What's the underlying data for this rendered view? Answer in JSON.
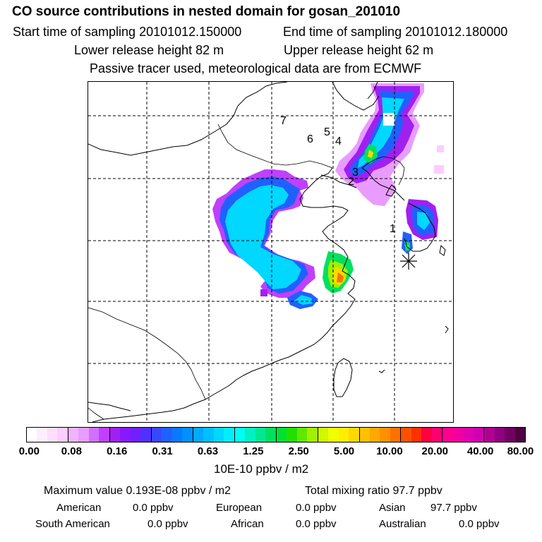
{
  "title": "CO  source contributions in nested domain for gosan_201010",
  "header": {
    "start": "Start time of sampling 20101012.150000",
    "end": "End time of sampling 20101012.180000",
    "lower": "Lower release height   82 m",
    "upper": "Upper release height   62 m",
    "note": "Passive tracer used, meteorological data are from ECMWF"
  },
  "map": {
    "trajectory_labels": [
      "1",
      "2",
      "3",
      "4",
      "5",
      "6",
      "7"
    ],
    "receptor_marker": "asterisk-icon"
  },
  "colorbar": {
    "colors": [
      "#ffffff",
      "#ffeeff",
      "#ffddff",
      "#ffccff",
      "#f0b4ff",
      "#e89cff",
      "#d070ff",
      "#c040ff",
      "#a020f0",
      "#8818ff",
      "#7020ff",
      "#5030ff",
      "#3848ff",
      "#2060ff",
      "#0a78ff",
      "#0090ff",
      "#00a8ff",
      "#00c0ff",
      "#00d8ff",
      "#00eeff",
      "#00ffee",
      "#00f0c0",
      "#00e890",
      "#00e060",
      "#00e030",
      "#20e000",
      "#60e800",
      "#a0f000",
      "#d0f800",
      "#eeff00",
      "#ffee00",
      "#ffd800",
      "#ffc000",
      "#ffa800",
      "#ff9000",
      "#ff7000",
      "#ff5000",
      "#ff3000",
      "#ff0040",
      "#ff0070",
      "#ff0090",
      "#f000a0",
      "#e000b0",
      "#d000b0",
      "#b00090",
      "#900080",
      "#700060",
      "#500040"
    ],
    "tick_labels": [
      "0.00",
      "0.08",
      "0.16",
      "0.31",
      "0.63",
      "1.25",
      "2.50",
      "5.00",
      "10.00",
      "20.00",
      "40.00",
      "80.00"
    ],
    "unit": "10E-10 ppbv / m2"
  },
  "footer": {
    "maximum": "Maximum value  0.193E-08 ppbv / m2",
    "total": "Total mixing ratio       97.7 ppbv",
    "sources": [
      {
        "name": "American",
        "value": "0.0 ppbv"
      },
      {
        "name": "European",
        "value": "0.0 ppbv"
      },
      {
        "name": "Asian",
        "value": "97.7 ppbv"
      },
      {
        "name": "South American",
        "value": "0.0 ppbv"
      },
      {
        "name": "African",
        "value": "0.0 ppbv"
      },
      {
        "name": "Australian",
        "value": "0.0 ppbv"
      }
    ]
  }
}
